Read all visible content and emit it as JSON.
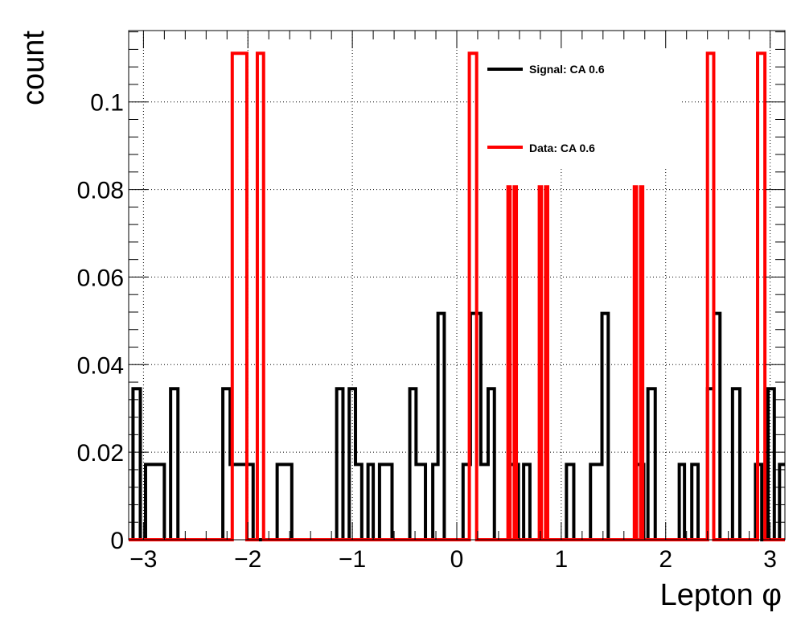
{
  "chart_data": {
    "type": "line",
    "drawstyle": "histogram-step",
    "xlabel": "Lepton φ",
    "ylabel": "count",
    "xlim": [
      -3.1416,
      3.1416
    ],
    "ylim": [
      0,
      0.1163
    ],
    "grid": true,
    "legend_position": "top-right",
    "xticks": [
      -3,
      -2,
      -1,
      0,
      1,
      2,
      3
    ],
    "xtick_labels": [
      "−3",
      "−2",
      "−1",
      "0",
      "1",
      "2",
      "3"
    ],
    "yticks": [
      0,
      0.02,
      0.04,
      0.06,
      0.08,
      0.1
    ],
    "ytick_labels": [
      "0",
      "0.02",
      "0.04",
      "0.06",
      "0.08",
      "0.1"
    ],
    "series": [
      {
        "name": "Signal: CA 0.6",
        "color": "#000000",
        "bins": [
          [
            -3.1416,
            -3.1,
            0
          ],
          [
            -3.1,
            -3.03,
            0.0345
          ],
          [
            -3.03,
            -2.98,
            0
          ],
          [
            -2.98,
            -2.8,
            0.0172
          ],
          [
            -2.8,
            -2.74,
            0
          ],
          [
            -2.74,
            -2.67,
            0.0345
          ],
          [
            -2.67,
            -2.24,
            0
          ],
          [
            -2.24,
            -2.17,
            0.0345
          ],
          [
            -2.17,
            -1.95,
            0.0172
          ],
          [
            -1.95,
            -1.72,
            0
          ],
          [
            -1.72,
            -1.58,
            0.0172
          ],
          [
            -1.58,
            -1.15,
            0
          ],
          [
            -1.15,
            -1.09,
            0.0345
          ],
          [
            -1.09,
            -1.03,
            0
          ],
          [
            -1.03,
            -0.97,
            0.0345
          ],
          [
            -0.97,
            -0.91,
            0.0172
          ],
          [
            -0.91,
            -0.85,
            0
          ],
          [
            -0.85,
            -0.8,
            0.0172
          ],
          [
            -0.8,
            -0.74,
            0
          ],
          [
            -0.74,
            -0.62,
            0.0172
          ],
          [
            -0.62,
            -0.45,
            0
          ],
          [
            -0.45,
            -0.39,
            0.0345
          ],
          [
            -0.39,
            -0.3,
            0.0172
          ],
          [
            -0.3,
            -0.23,
            0
          ],
          [
            -0.23,
            -0.18,
            0.0172
          ],
          [
            -0.18,
            -0.12,
            0.0517
          ],
          [
            -0.12,
            0.06,
            0
          ],
          [
            0.06,
            0.13,
            0.0172
          ],
          [
            0.13,
            0.23,
            0.0517
          ],
          [
            0.23,
            0.3,
            0.0172
          ],
          [
            0.3,
            0.36,
            0.0345
          ],
          [
            0.36,
            0.5,
            0
          ],
          [
            0.5,
            0.59,
            0.0172
          ],
          [
            0.59,
            0.64,
            0
          ],
          [
            0.64,
            0.7,
            0.0172
          ],
          [
            0.7,
            1.05,
            0
          ],
          [
            1.05,
            1.12,
            0.0172
          ],
          [
            1.12,
            1.28,
            0
          ],
          [
            1.28,
            1.39,
            0.0172
          ],
          [
            1.39,
            1.45,
            0.0517
          ],
          [
            1.45,
            1.72,
            0
          ],
          [
            1.72,
            1.79,
            0.0172
          ],
          [
            1.79,
            1.83,
            0
          ],
          [
            1.83,
            1.9,
            0.0345
          ],
          [
            1.9,
            2.13,
            0
          ],
          [
            2.13,
            2.18,
            0.0172
          ],
          [
            2.18,
            2.25,
            0
          ],
          [
            2.25,
            2.31,
            0.0172
          ],
          [
            2.31,
            2.4,
            0
          ],
          [
            2.4,
            2.46,
            0.0345
          ],
          [
            2.46,
            2.52,
            0.0517
          ],
          [
            2.52,
            2.64,
            0
          ],
          [
            2.64,
            2.71,
            0.0345
          ],
          [
            2.71,
            2.86,
            0
          ],
          [
            2.86,
            2.92,
            0.0172
          ],
          [
            2.92,
            2.98,
            0
          ],
          [
            2.98,
            3.04,
            0.0345
          ],
          [
            3.04,
            3.09,
            0
          ],
          [
            3.09,
            3.1416,
            0.0172
          ]
        ]
      },
      {
        "name": "Data: CA 0.6",
        "color": "#ff0000",
        "bins": [
          [
            -3.1416,
            -2.15,
            0
          ],
          [
            -2.15,
            -2.01,
            0.1111
          ],
          [
            -2.01,
            -1.91,
            0
          ],
          [
            -1.91,
            -1.85,
            0.1111
          ],
          [
            -1.85,
            0.12,
            0
          ],
          [
            0.12,
            0.19,
            0.1111
          ],
          [
            0.19,
            0.49,
            0
          ],
          [
            0.49,
            0.51,
            0.0806
          ],
          [
            0.51,
            0.55,
            0
          ],
          [
            0.55,
            0.57,
            0.0806
          ],
          [
            0.57,
            0.79,
            0
          ],
          [
            0.79,
            0.81,
            0.0806
          ],
          [
            0.81,
            0.85,
            0
          ],
          [
            0.85,
            0.87,
            0.0806
          ],
          [
            0.87,
            1.7,
            0
          ],
          [
            1.7,
            1.72,
            0.0806
          ],
          [
            1.72,
            1.76,
            0
          ],
          [
            1.76,
            1.78,
            0.0806
          ],
          [
            1.78,
            2.4,
            0
          ],
          [
            2.4,
            2.46,
            0.1111
          ],
          [
            2.46,
            2.88,
            0
          ],
          [
            2.88,
            2.95,
            0.1111
          ],
          [
            2.95,
            3.1416,
            0
          ]
        ]
      }
    ]
  }
}
